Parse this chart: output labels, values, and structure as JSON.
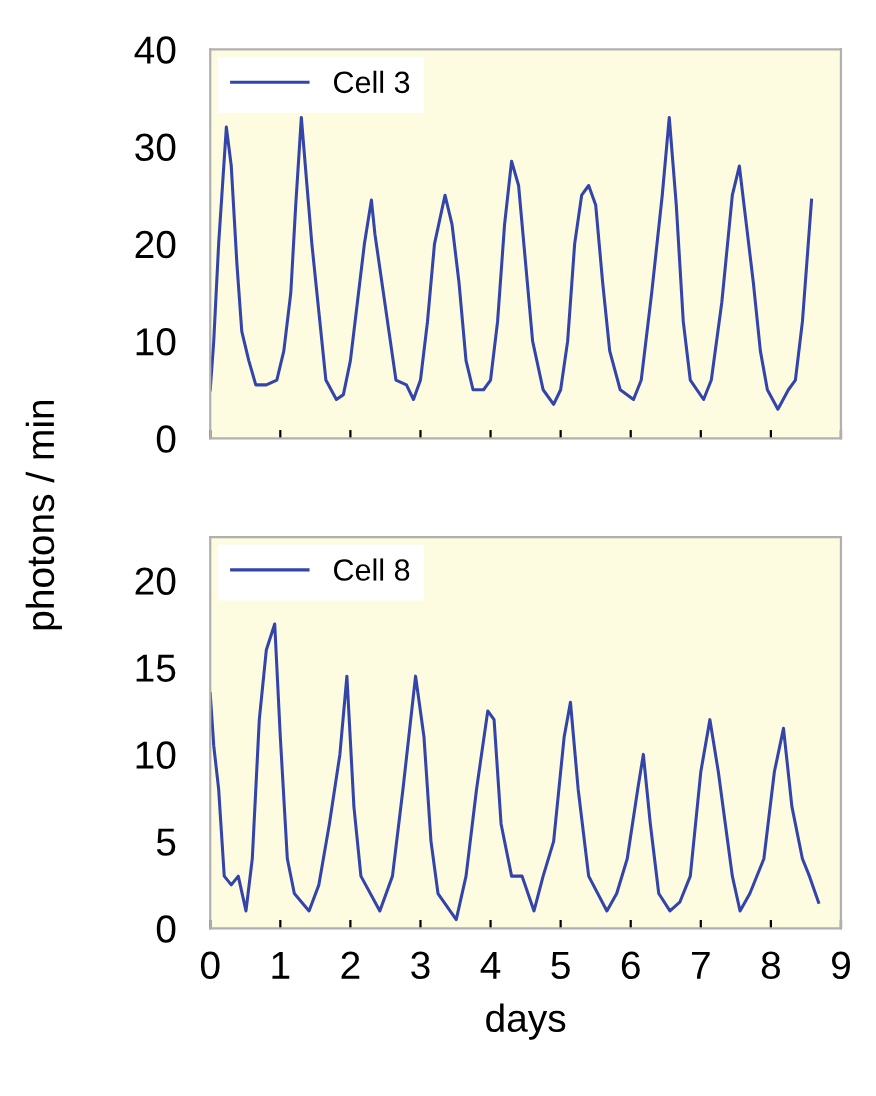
{
  "chart_data": [
    {
      "type": "line",
      "ylabel": "photons / min",
      "xlim": [
        0,
        9
      ],
      "xticks": [
        0,
        1,
        2,
        3,
        4,
        5,
        6,
        7,
        8,
        9
      ],
      "ylim": [
        0,
        40
      ],
      "yticks": [
        0,
        10,
        20,
        30,
        40
      ],
      "tick_labels": "y",
      "legend": "top left",
      "grid": false,
      "series": [
        {
          "name": "Cell 3",
          "color": "#3344aa",
          "x": [
            0,
            0.05,
            0.12,
            0.23,
            0.3,
            0.38,
            0.45,
            0.55,
            0.65,
            0.8,
            0.95,
            1.05,
            1.15,
            1.22,
            1.3,
            1.38,
            1.45,
            1.55,
            1.65,
            1.8,
            1.9,
            2.0,
            2.1,
            2.2,
            2.3,
            2.35,
            2.45,
            2.55,
            2.65,
            2.8,
            2.9,
            3.0,
            3.1,
            3.2,
            3.35,
            3.45,
            3.55,
            3.65,
            3.75,
            3.9,
            4.0,
            4.1,
            4.2,
            4.3,
            4.4,
            4.5,
            4.6,
            4.75,
            4.9,
            5.0,
            5.1,
            5.2,
            5.3,
            5.4,
            5.5,
            5.6,
            5.7,
            5.85,
            6.04,
            6.15,
            6.3,
            6.45,
            6.55,
            6.65,
            6.75,
            6.85,
            7.04,
            7.15,
            7.3,
            7.45,
            7.55,
            7.65,
            7.75,
            7.85,
            7.95,
            8.1,
            8.25,
            8.35,
            8.45,
            8.58
          ],
          "values": [
            5,
            10,
            20,
            32,
            28,
            18,
            11,
            8,
            5.5,
            5.5,
            6,
            9,
            15,
            24,
            33,
            26,
            20,
            13,
            6,
            4,
            4.5,
            8,
            14,
            20,
            24.5,
            21,
            16,
            11,
            6,
            5.5,
            4,
            6,
            12,
            20,
            25,
            22,
            16,
            8,
            5,
            5,
            6,
            12,
            22,
            28.5,
            26,
            18,
            10,
            5,
            3.5,
            5,
            10,
            20,
            25,
            26,
            24,
            16,
            9,
            5,
            4,
            6,
            15,
            25,
            33,
            24,
            12,
            6,
            4,
            6,
            14,
            25,
            28,
            22,
            16,
            9,
            5,
            3,
            5,
            6,
            12,
            24.5
          ]
        }
      ]
    },
    {
      "type": "line",
      "xlabel": "days",
      "xlim": [
        0,
        9
      ],
      "xticks": [
        0,
        1,
        2,
        3,
        4,
        5,
        6,
        7,
        8,
        9
      ],
      "ylim": [
        0,
        22.5
      ],
      "yticks": [
        0,
        5,
        10,
        15,
        20
      ],
      "legend": "top left",
      "grid": false,
      "series": [
        {
          "name": "Cell 8",
          "color": "#3344aa",
          "x": [
            0,
            0.05,
            0.12,
            0.2,
            0.3,
            0.4,
            0.51,
            0.6,
            0.7,
            0.8,
            0.92,
            1.0,
            1.1,
            1.2,
            1.41,
            1.55,
            1.7,
            1.85,
            1.95,
            2.05,
            2.15,
            2.42,
            2.6,
            2.75,
            2.93,
            3.05,
            3.15,
            3.25,
            3.51,
            3.65,
            3.8,
            3.96,
            4.05,
            4.15,
            4.3,
            4.45,
            4.62,
            4.75,
            4.9,
            5.05,
            5.14,
            5.25,
            5.4,
            5.66,
            5.8,
            5.95,
            6.1,
            6.18,
            6.28,
            6.4,
            6.56,
            6.7,
            6.85,
            7.0,
            7.13,
            7.25,
            7.35,
            7.45,
            7.56,
            7.7,
            7.9,
            8.05,
            8.18,
            8.3,
            8.45,
            8.55,
            8.68
          ],
          "values": [
            13.5,
            10.5,
            8,
            3,
            2.5,
            3,
            1,
            4,
            12,
            16,
            17.5,
            11,
            4,
            2,
            1,
            2.5,
            6,
            10,
            14.5,
            7,
            3,
            1,
            3,
            8,
            14.5,
            11,
            5,
            2,
            0.5,
            3,
            8,
            12.5,
            12,
            6,
            3,
            3,
            1,
            3,
            5,
            11,
            13,
            8,
            3,
            1,
            2,
            4,
            8,
            10,
            6,
            2,
            1,
            1.5,
            3,
            9,
            12,
            9,
            6,
            3,
            1,
            2,
            4,
            9,
            11.5,
            7,
            4,
            3,
            1.5
          ]
        }
      ]
    }
  ]
}
